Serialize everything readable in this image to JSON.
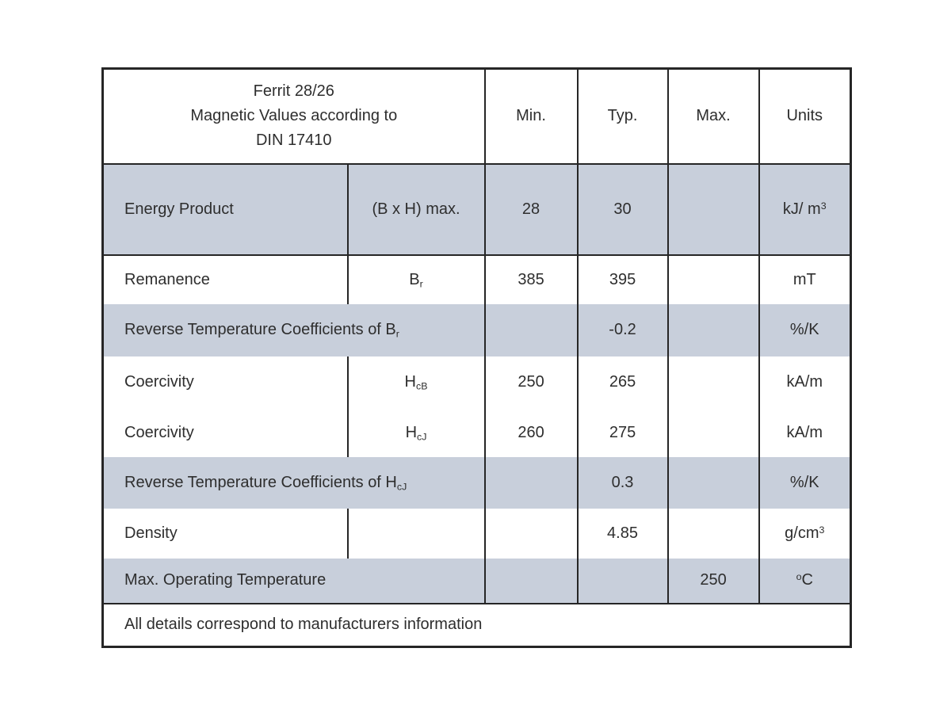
{
  "colors": {
    "row_shade": "#c8cfdb",
    "border": "#262626",
    "text": "#2e2e2e",
    "background": "#ffffff"
  },
  "table": {
    "header": {
      "title_lines": [
        "Ferrit 28/26",
        "Magnetic Values according to",
        "DIN 17410"
      ],
      "columns": [
        "Min.",
        "Typ.",
        "Max.",
        "Units"
      ]
    },
    "rows": [
      {
        "name": "Energy Product",
        "symbol": [
          [
            "n",
            "(B x H) max."
          ]
        ],
        "min": "28",
        "typ": "30",
        "max": "",
        "units": [
          [
            "n",
            "kJ/ m"
          ],
          [
            "sup",
            "3"
          ]
        ]
      },
      {
        "name": "Remanence",
        "symbol": [
          [
            "n",
            "B"
          ],
          [
            "sub",
            "r"
          ]
        ],
        "min": "385",
        "typ": "395",
        "max": "",
        "units": [
          [
            "n",
            "mT"
          ]
        ]
      },
      {
        "label": [
          [
            "n",
            "Reverse Temperature Coefficients of B"
          ],
          [
            "sub",
            "r"
          ]
        ],
        "min": "",
        "typ": "-0.2",
        "max": "",
        "units": [
          [
            "n",
            "%/K"
          ]
        ]
      },
      {
        "name": "Coercivity",
        "symbol": [
          [
            "n",
            "H"
          ],
          [
            "sub",
            "cB"
          ]
        ],
        "min": "250",
        "typ": "265",
        "max": "",
        "units": [
          [
            "n",
            "kA/m"
          ]
        ]
      },
      {
        "name": "Coercivity",
        "symbol": [
          [
            "n",
            "H"
          ],
          [
            "sub",
            "cJ"
          ]
        ],
        "min": "260",
        "typ": "275",
        "max": "",
        "units": [
          [
            "n",
            "kA/m"
          ]
        ]
      },
      {
        "label": [
          [
            "n",
            "Reverse Temperature Coefficients of H"
          ],
          [
            "sub",
            "cJ"
          ]
        ],
        "min": "",
        "typ": "0.3",
        "max": "",
        "units": [
          [
            "n",
            "%/K"
          ]
        ]
      },
      {
        "name": "Density",
        "symbol": [
          [
            "n",
            ""
          ]
        ],
        "min": "",
        "typ": "4.85",
        "max": "",
        "units": [
          [
            "n",
            "g/cm"
          ],
          [
            "sup",
            "3"
          ]
        ]
      },
      {
        "label": [
          [
            "n",
            "Max. Operating Temperature"
          ]
        ],
        "min": "",
        "typ": "",
        "max": "250",
        "units": [
          [
            "sup",
            "o"
          ],
          [
            "n",
            "C"
          ]
        ]
      }
    ],
    "footer": "All details correspond to manufacturers information"
  }
}
